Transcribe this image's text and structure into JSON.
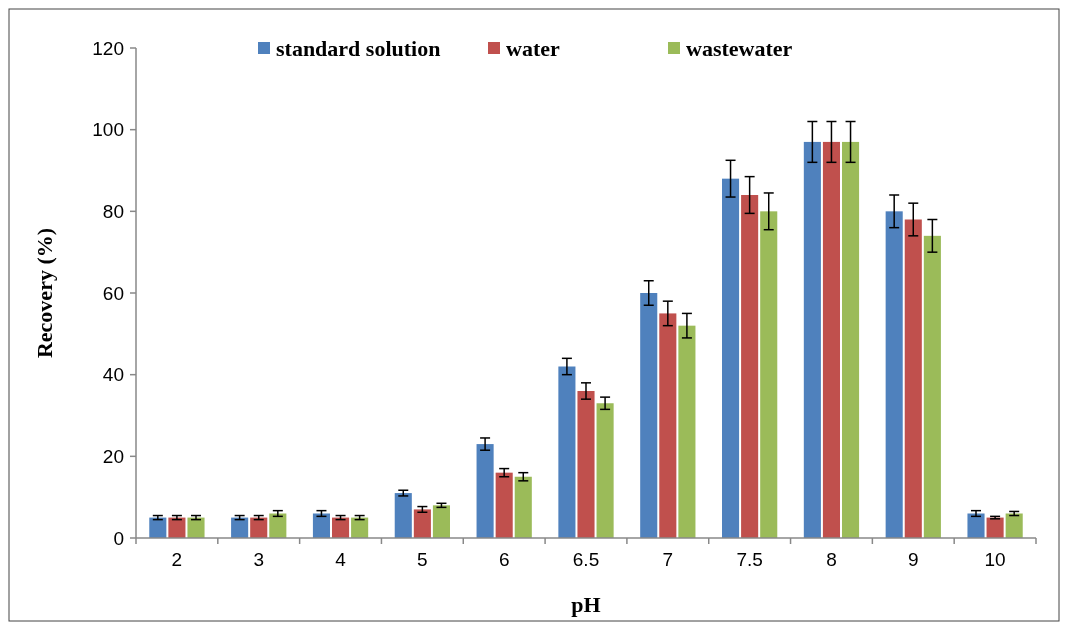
{
  "chart_data": {
    "type": "bar",
    "xlabel": "pH",
    "ylabel": "Recovery (%)",
    "categories": [
      "2",
      "3",
      "4",
      "5",
      "6",
      "6.5",
      "7",
      "7.5",
      "8",
      "9",
      "10"
    ],
    "series": [
      {
        "name": "standard solution",
        "color": "#4f81bd",
        "values": [
          5,
          5,
          6,
          11,
          23,
          42,
          60,
          88,
          97,
          80,
          6
        ],
        "errors": [
          0.5,
          0.5,
          0.7,
          0.7,
          1.5,
          2,
          3,
          4.5,
          5,
          4,
          0.7
        ]
      },
      {
        "name": "water",
        "color": "#c0504d",
        "values": [
          5,
          5,
          5,
          7,
          16,
          36,
          55,
          84,
          97,
          78,
          5
        ],
        "errors": [
          0.5,
          0.5,
          0.5,
          0.7,
          1,
          2,
          3,
          4.5,
          5,
          4,
          0.3
        ]
      },
      {
        "name": "wastewater",
        "color": "#9bbb59",
        "values": [
          5,
          6,
          5,
          8,
          15,
          33,
          52,
          80,
          97,
          74,
          6
        ],
        "errors": [
          0.5,
          0.7,
          0.5,
          0.5,
          1,
          1.5,
          3,
          4.5,
          5,
          4,
          0.5
        ]
      }
    ],
    "ylim": [
      0,
      120
    ],
    "yticks": [
      0,
      20,
      40,
      60,
      80,
      100,
      120
    ],
    "grid": false,
    "legend": "top"
  }
}
